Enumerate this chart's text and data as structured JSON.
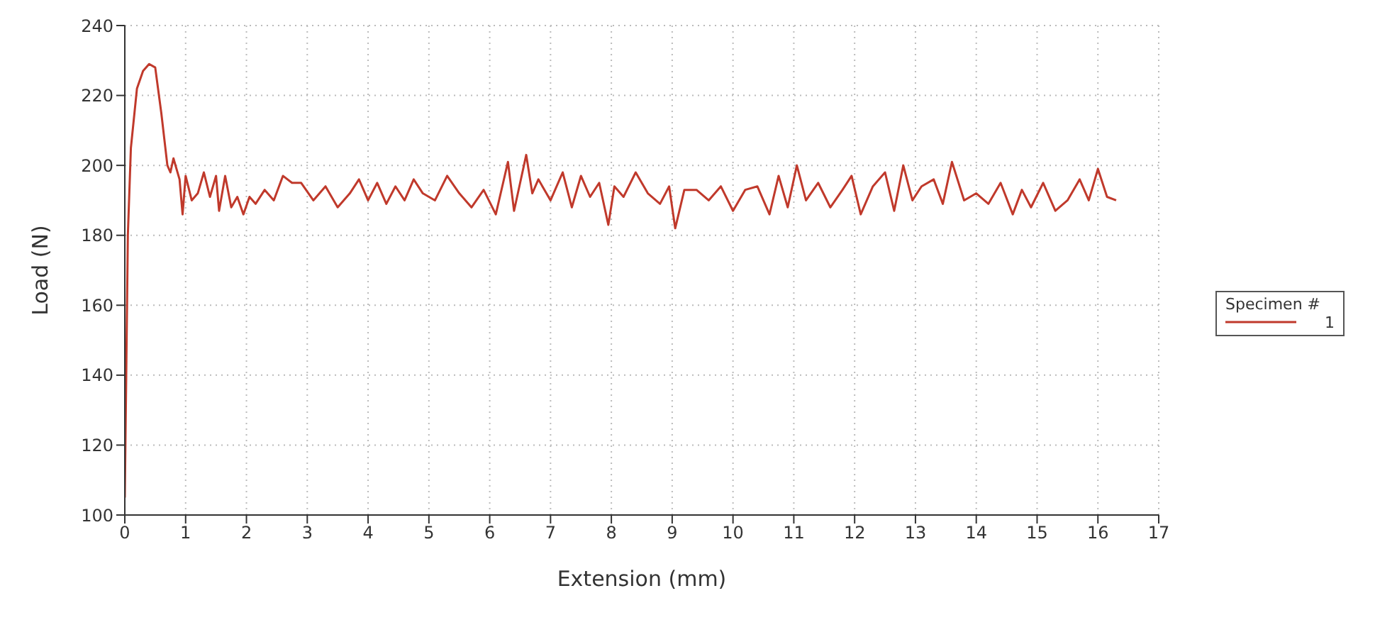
{
  "chart_data": {
    "type": "line",
    "xlabel": "Extension (mm)",
    "ylabel": "Load (N)",
    "legend_title": "Specimen #",
    "legend": "right",
    "grid": true,
    "marker": "none",
    "line_style": "solid",
    "xlim": [
      0,
      17
    ],
    "xticks": [
      0,
      1,
      2,
      3,
      4,
      5,
      6,
      7,
      8,
      9,
      10,
      11,
      12,
      13,
      14,
      15,
      16,
      17
    ],
    "ylim": [
      100,
      240
    ],
    "yticks": [
      100,
      120,
      140,
      160,
      180,
      200,
      220,
      240
    ],
    "series": [
      {
        "name": "1",
        "color": "#c0392b",
        "x": [
          0,
          0.05,
          0.1,
          0.2,
          0.3,
          0.4,
          0.5,
          0.6,
          0.7,
          0.75,
          0.8,
          0.9,
          0.95,
          1.0,
          1.1,
          1.2,
          1.3,
          1.4,
          1.5,
          1.55,
          1.65,
          1.75,
          1.85,
          1.95,
          2.05,
          2.15,
          2.3,
          2.45,
          2.6,
          2.75,
          2.9,
          3.1,
          3.3,
          3.5,
          3.7,
          3.85,
          4.0,
          4.15,
          4.3,
          4.45,
          4.6,
          4.75,
          4.9,
          5.1,
          5.3,
          5.5,
          5.7,
          5.9,
          6.1,
          6.3,
          6.4,
          6.5,
          6.6,
          6.7,
          6.8,
          7.0,
          7.2,
          7.35,
          7.5,
          7.65,
          7.8,
          7.95,
          8.05,
          8.2,
          8.4,
          8.6,
          8.8,
          8.95,
          9.05,
          9.2,
          9.4,
          9.6,
          9.8,
          10.0,
          10.2,
          10.4,
          10.6,
          10.75,
          10.9,
          11.05,
          11.2,
          11.4,
          11.6,
          11.8,
          11.95,
          12.1,
          12.3,
          12.5,
          12.65,
          12.8,
          12.95,
          13.1,
          13.3,
          13.45,
          13.6,
          13.8,
          14.0,
          14.2,
          14.4,
          14.6,
          14.75,
          14.9,
          15.1,
          15.3,
          15.5,
          15.7,
          15.85,
          16.0,
          16.15,
          16.3
        ],
        "values": [
          105,
          180,
          205,
          222,
          227,
          229,
          228,
          215,
          200,
          198,
          202,
          196,
          186,
          197,
          190,
          192,
          198,
          191,
          197,
          187,
          197,
          188,
          191,
          186,
          191,
          189,
          193,
          190,
          197,
          195,
          195,
          190,
          194,
          188,
          192,
          196,
          190,
          195,
          189,
          194,
          190,
          196,
          192,
          190,
          197,
          192,
          188,
          193,
          186,
          201,
          187,
          195,
          203,
          192,
          196,
          190,
          198,
          188,
          197,
          191,
          195,
          183,
          194,
          191,
          198,
          192,
          189,
          194,
          182,
          193,
          193,
          190,
          194,
          187,
          193,
          194,
          186,
          197,
          188,
          200,
          190,
          195,
          188,
          193,
          197,
          186,
          194,
          198,
          187,
          200,
          190,
          194,
          196,
          189,
          201,
          190,
          192,
          189,
          195,
          186,
          193,
          188,
          195,
          187,
          190,
          196,
          190,
          199,
          191,
          190
        ]
      }
    ]
  }
}
